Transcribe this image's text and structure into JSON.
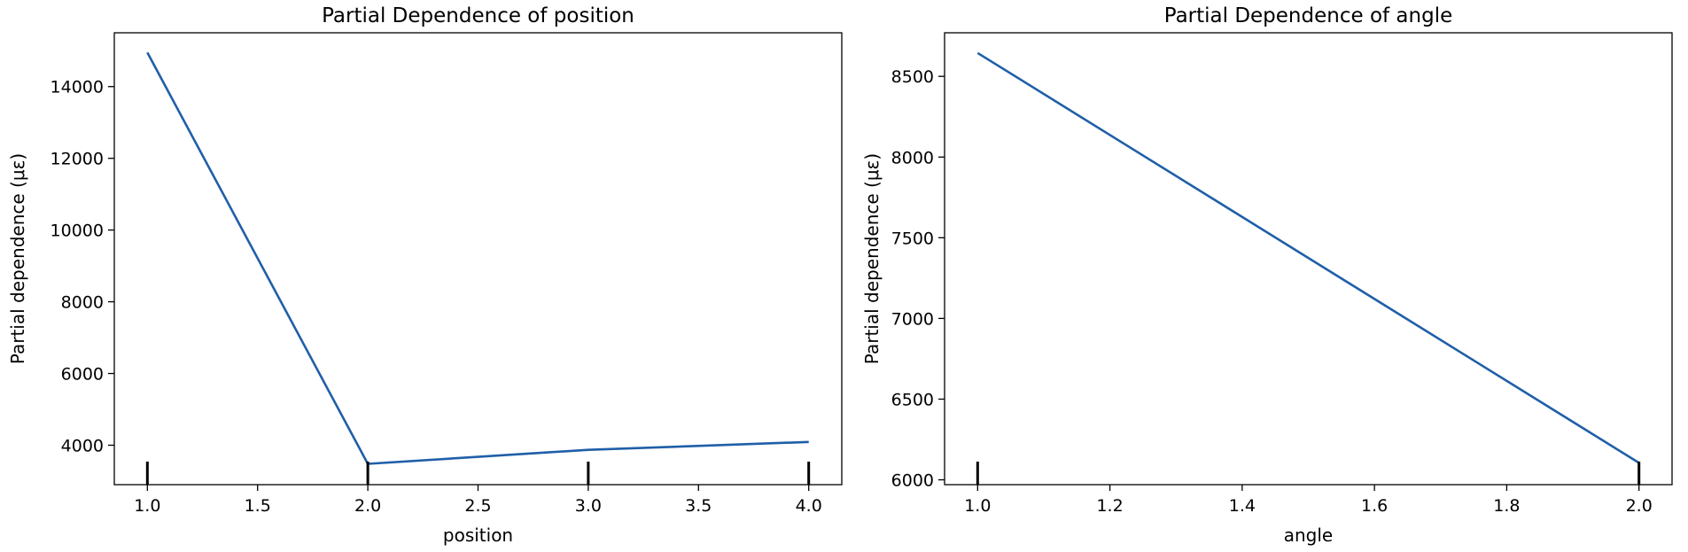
{
  "chart_data": [
    {
      "type": "line",
      "title": "Partial Dependence of position",
      "xlabel": "position",
      "ylabel": "Partial dependence (με)",
      "x": [
        1.0,
        2.0,
        3.0,
        4.0
      ],
      "series": [
        {
          "values": [
            14950,
            3480,
            3870,
            4090
          ]
        }
      ],
      "rug_x": [
        1.0,
        2.0,
        3.0,
        4.0
      ],
      "xlim": [
        0.85,
        4.15
      ],
      "ylim": [
        2900,
        15500
      ],
      "xticks": [
        1.0,
        1.5,
        2.0,
        2.5,
        3.0,
        3.5,
        4.0
      ],
      "xtick_labels": [
        "1.0",
        "1.5",
        "2.0",
        "2.5",
        "3.0",
        "3.5",
        "4.0"
      ],
      "yticks": [
        4000,
        6000,
        8000,
        10000,
        12000,
        14000
      ],
      "ytick_labels": [
        "4000",
        "6000",
        "8000",
        "10000",
        "12000",
        "14000"
      ],
      "grid": false,
      "line_color": "#1f5fa8"
    },
    {
      "type": "line",
      "title": "Partial Dependence of angle",
      "xlabel": "angle",
      "ylabel": "Partial dependence (με)",
      "x": [
        1.0,
        2.0
      ],
      "series": [
        {
          "values": [
            8645,
            6105
          ]
        }
      ],
      "rug_x": [
        1.0,
        2.0
      ],
      "xlim": [
        0.95,
        2.05
      ],
      "ylim": [
        5970,
        8770
      ],
      "xticks": [
        1.0,
        1.2,
        1.4,
        1.6,
        1.8,
        2.0
      ],
      "xtick_labels": [
        "1.0",
        "1.2",
        "1.4",
        "1.6",
        "1.8",
        "2.0"
      ],
      "yticks": [
        6000,
        6500,
        7000,
        7500,
        8000,
        8500
      ],
      "ytick_labels": [
        "6000",
        "6500",
        "7000",
        "7500",
        "8000",
        "8500"
      ],
      "grid": false,
      "line_color": "#1f5fa8"
    }
  ]
}
